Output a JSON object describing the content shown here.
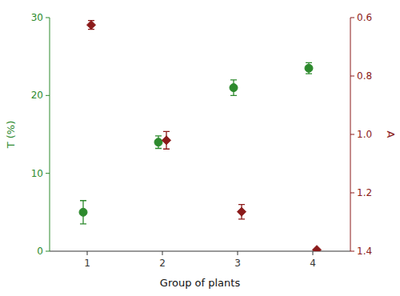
{
  "chart_data": {
    "type": "scatter",
    "xlabel": "Group of plants",
    "ylabel": "T (%)",
    "y2label": "A",
    "x": [
      1,
      2,
      3,
      4
    ],
    "xlim": [
      0.5,
      4.5
    ],
    "xticks": [
      1,
      2,
      3,
      4
    ],
    "ylim": [
      0,
      30
    ],
    "yticks": [
      0,
      10,
      20,
      30
    ],
    "y2lim": [
      1.4,
      0.6
    ],
    "y2ticks": [
      {
        "value": 0.6,
        "label": "0.6"
      },
      {
        "value": 0.8,
        "label": "0.8"
      },
      {
        "value": 1.0,
        "label": "1.0"
      },
      {
        "value": 1.2,
        "label": "1.2"
      },
      {
        "value": 1.4,
        "label": "1.4"
      }
    ],
    "grid": false,
    "series": [
      {
        "name": "T",
        "color": "#2d8a2d",
        "marker": "circle",
        "values": [
          5.0,
          14.0,
          21.0,
          23.5
        ],
        "errors": [
          1.5,
          0.8,
          1.0,
          0.7
        ]
      },
      {
        "name": "A",
        "axis": "y2",
        "color": "#8b1a1a",
        "marker": "diamond",
        "values": [
          0.625,
          1.02,
          1.265,
          1.395
        ],
        "errors_down": [
          0.015,
          0.03,
          0.025,
          0.0
        ],
        "errors_up": [
          0.015,
          0.03,
          0.025,
          0.0
        ]
      }
    ]
  }
}
